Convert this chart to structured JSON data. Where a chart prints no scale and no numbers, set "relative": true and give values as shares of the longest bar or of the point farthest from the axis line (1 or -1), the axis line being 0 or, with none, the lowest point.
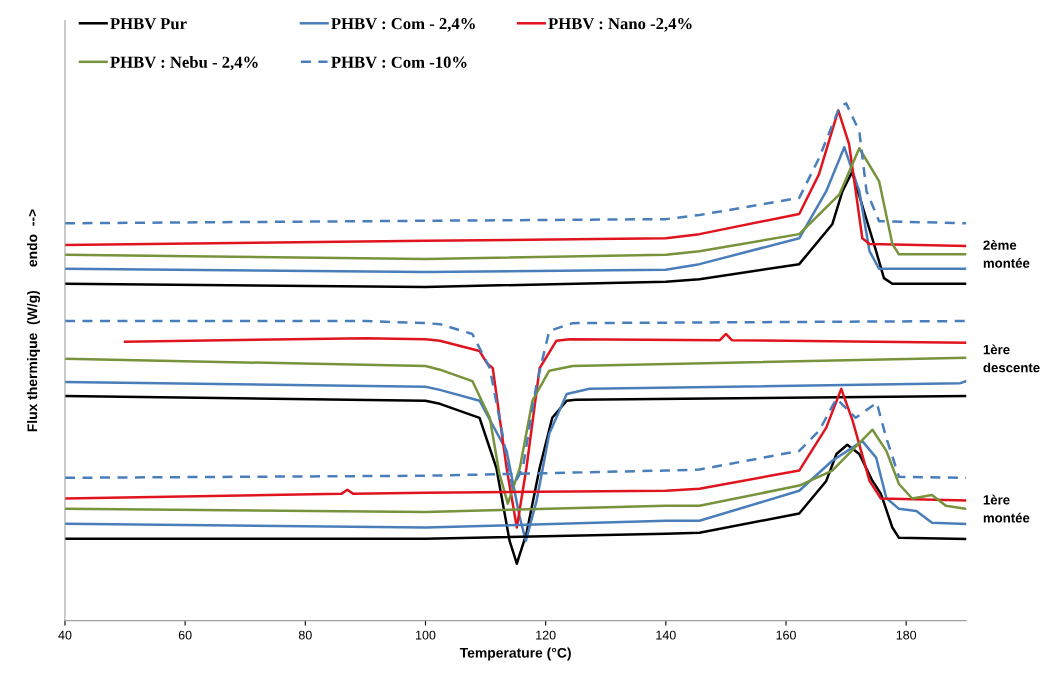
{
  "chart_data": {
    "type": "line",
    "relative": true,
    "xlabel": "Temperature (°C)",
    "ylabel": "Flux thermique  (W/g)      endo  -->",
    "xlim": [
      40,
      190
    ],
    "xticks": [
      40,
      60,
      80,
      100,
      120,
      140,
      160,
      180
    ],
    "grid": false,
    "legend": "top left",
    "marker": "none",
    "annotations": [
      "2ème\nmontée",
      "1ère\ndescente",
      "1ère\nmontée"
    ],
    "series": [
      {
        "name": "PHBV Pur",
        "color": "#000000",
        "line_style": "solid",
        "x": [
          40,
          100,
          140,
          145.6,
          162.2,
          167.7,
          169.4,
          171,
          175,
          176.3,
          177.7,
          190
        ],
        "values": [
          0.651,
          0.645,
          0.655,
          0.66,
          0.689,
          0.766,
          0.83,
          0.867,
          0.714,
          0.662,
          0.651,
          0.651
        ]
      },
      {
        "name": "PHBV : Com - 2,4%",
        "color": "#4a7ebb",
        "line_style": "solid",
        "x": [
          40,
          100,
          140,
          145.6,
          162.2,
          166.7,
          169.7,
          172.2,
          173.9,
          175.5,
          190
        ],
        "values": [
          0.68,
          0.674,
          0.678,
          0.689,
          0.739,
          0.83,
          0.915,
          0.83,
          0.714,
          0.68,
          0.68
        ]
      },
      {
        "name": "PHBV : Nano -2,4%",
        "color": "#e0141e",
        "line_style": "solid",
        "x": [
          40,
          100,
          140,
          145.6,
          162.2,
          165.5,
          168.7,
          170.5,
          172.7,
          173.9,
          190
        ],
        "values": [
          0.726,
          0.734,
          0.739,
          0.747,
          0.786,
          0.863,
          0.986,
          0.921,
          0.739,
          0.728,
          0.724
        ]
      },
      {
        "name": "PHBV : Nebu - 2,4%",
        "color": "#77933c",
        "line_style": "solid",
        "x": [
          40,
          100,
          140,
          145.6,
          162.2,
          168.9,
          172.2,
          175.5,
          177.7,
          178.8,
          190
        ],
        "values": [
          0.707,
          0.699,
          0.707,
          0.714,
          0.747,
          0.824,
          0.913,
          0.849,
          0.728,
          0.708,
          0.708
        ]
      },
      {
        "name": "PHBV : Com -10%",
        "color": "#4a7ebb",
        "line_style": "dashed",
        "x": [
          40,
          140,
          145.6,
          162.2,
          165.5,
          168.9,
          170.0,
          172.2,
          173.4,
          175.5,
          190
        ],
        "values": [
          0.768,
          0.776,
          0.784,
          0.817,
          0.894,
          0.992,
          1.0,
          0.946,
          0.83,
          0.772,
          0.768
        ]
      },
      {
        "color": "#000000",
        "line_style": "solid",
        "x": [
          40,
          100,
          102.4,
          109,
          111.8,
          114,
          115.2,
          116.8,
          119,
          121.1,
          123.5,
          125,
          190
        ],
        "values": [
          0.434,
          0.425,
          0.419,
          0.392,
          0.295,
          0.154,
          0.11,
          0.168,
          0.295,
          0.392,
          0.425,
          0.427,
          0.434
        ]
      },
      {
        "color": "#4a7ebb",
        "line_style": "solid",
        "x": [
          40,
          100,
          102.4,
          109,
          113.5,
          115.7,
          116.7,
          118.5,
          120.6,
          123.5,
          127.3,
          189,
          190
        ],
        "values": [
          0.461,
          0.452,
          0.446,
          0.425,
          0.328,
          0.199,
          0.154,
          0.232,
          0.361,
          0.438,
          0.448,
          0.459,
          0.463
        ]
      },
      {
        "color": "#e0141e",
        "line_style": "solid",
        "x": [
          50,
          90,
          100,
          102.4,
          109,
          110.2,
          111.2,
          113.5,
          115.2,
          116.8,
          119,
          121.8,
          124,
          149,
          150,
          151,
          190
        ],
        "values": [
          0.539,
          0.546,
          0.544,
          0.541,
          0.521,
          0.498,
          0.488,
          0.295,
          0.18,
          0.295,
          0.488,
          0.541,
          0.544,
          0.542,
          0.554,
          0.542,
          0.537
        ]
      },
      {
        "color": "#77933c",
        "line_style": "solid",
        "x": [
          40,
          100,
          102.4,
          107.8,
          110.7,
          112.3,
          113.7,
          115.7,
          117.8,
          120.6,
          124.5,
          190
        ],
        "values": [
          0.506,
          0.492,
          0.485,
          0.463,
          0.392,
          0.284,
          0.226,
          0.295,
          0.425,
          0.483,
          0.492,
          0.508
        ]
      },
      {
        "color": "#4a7ebb",
        "line_style": "dashed",
        "x": [
          40,
          90,
          100,
          102.4,
          107.8,
          110.7,
          112.8,
          114.5,
          116.2,
          118.5,
          120.6,
          124.5,
          190
        ],
        "values": [
          0.579,
          0.579,
          0.575,
          0.573,
          0.554,
          0.488,
          0.361,
          0.257,
          0.295,
          0.458,
          0.56,
          0.575,
          0.579
        ]
      },
      {
        "color": "#000000",
        "line_style": "solid",
        "x": [
          40,
          100,
          140,
          145.6,
          162.2,
          166.7,
          168.4,
          170.2,
          172.2,
          174.4,
          175.8,
          177.7,
          178.8,
          190
        ],
        "values": [
          0.158,
          0.158,
          0.168,
          0.17,
          0.207,
          0.27,
          0.322,
          0.34,
          0.322,
          0.27,
          0.245,
          0.18,
          0.16,
          0.158
        ]
      },
      {
        "color": "#4a7ebb",
        "line_style": "solid",
        "x": [
          40,
          100,
          140,
          145.6,
          162.2,
          167.7,
          172.7,
          175,
          176.7,
          178.8,
          181.7,
          184.3,
          190
        ],
        "values": [
          0.187,
          0.18,
          0.193,
          0.193,
          0.251,
          0.309,
          0.347,
          0.315,
          0.237,
          0.216,
          0.212,
          0.189,
          0.187
        ]
      },
      {
        "color": "#e0141e",
        "line_style": "solid",
        "x": [
          40,
          86,
          87,
          88,
          100,
          140,
          145.6,
          162.2,
          166.7,
          169.2,
          171.1,
          173.9,
          175.8,
          190
        ],
        "values": [
          0.236,
          0.245,
          0.253,
          0.245,
          0.247,
          0.251,
          0.255,
          0.29,
          0.373,
          0.448,
          0.386,
          0.27,
          0.236,
          0.232
        ]
      },
      {
        "color": "#77933c",
        "line_style": "solid",
        "x": [
          40,
          100,
          140,
          145.6,
          162.2,
          167.7,
          174.4,
          176.7,
          178.8,
          181,
          184.3,
          186.6,
          190
        ],
        "values": [
          0.216,
          0.21,
          0.222,
          0.222,
          0.261,
          0.29,
          0.369,
          0.328,
          0.264,
          0.236,
          0.243,
          0.222,
          0.216
        ]
      },
      {
        "color": "#4a7ebb",
        "line_style": "dashed",
        "x": [
          40,
          100,
          140,
          145.6,
          162.2,
          165.5,
          168.4,
          171.6,
          175.1,
          176.7,
          178.8,
          190
        ],
        "values": [
          0.276,
          0.28,
          0.29,
          0.292,
          0.328,
          0.367,
          0.429,
          0.392,
          0.421,
          0.353,
          0.278,
          0.276
        ]
      }
    ]
  }
}
